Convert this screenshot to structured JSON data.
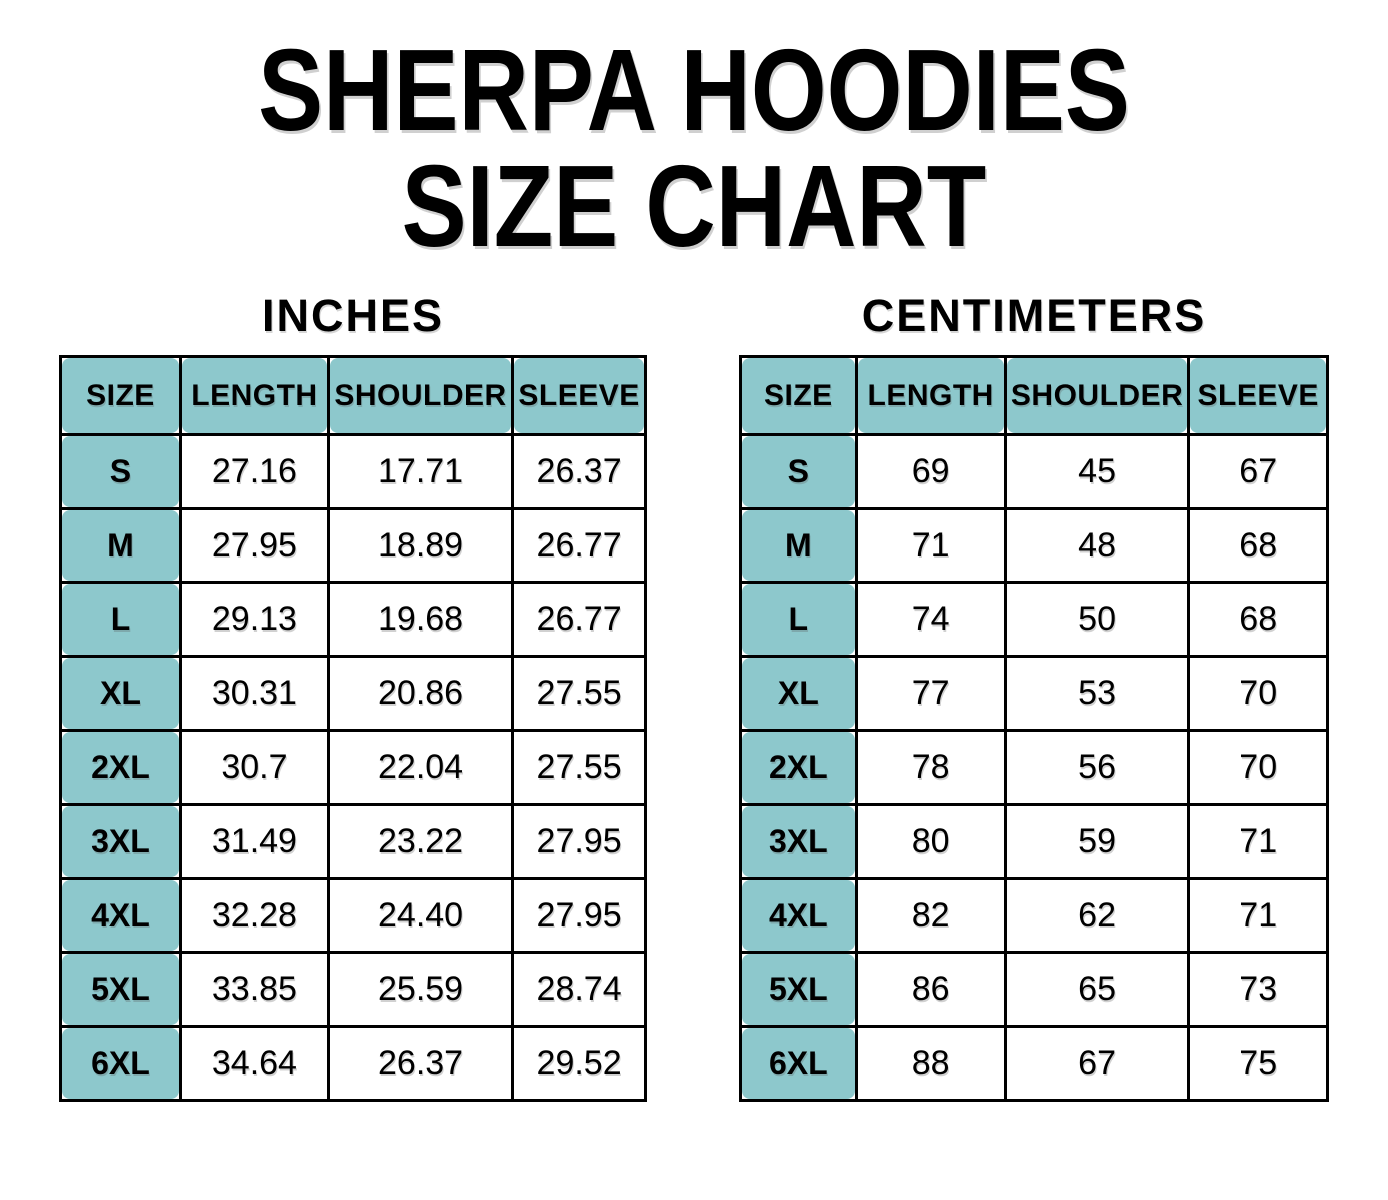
{
  "title": {
    "line1": "SHERPA HOODIES",
    "line2": "SIZE CHART"
  },
  "colors": {
    "header_fill": "#8dc8cc",
    "border": "#000000",
    "text": "#000000",
    "background": "#ffffff"
  },
  "chart_data": [
    {
      "type": "table",
      "title": "INCHES",
      "columns": [
        "SIZE",
        "LENGTH",
        "SHOULDER",
        "SLEEVE"
      ],
      "rows": [
        [
          "S",
          "27.16",
          "17.71",
          "26.37"
        ],
        [
          "M",
          "27.95",
          "18.89",
          "26.77"
        ],
        [
          "L",
          "29.13",
          "19.68",
          "26.77"
        ],
        [
          "XL",
          "30.31",
          "20.86",
          "27.55"
        ],
        [
          "2XL",
          "30.7",
          "22.04",
          "27.55"
        ],
        [
          "3XL",
          "31.49",
          "23.22",
          "27.95"
        ],
        [
          "4XL",
          "32.28",
          "24.40",
          "27.95"
        ],
        [
          "5XL",
          "33.85",
          "25.59",
          "28.74"
        ],
        [
          "6XL",
          "34.64",
          "26.37",
          "29.52"
        ]
      ]
    },
    {
      "type": "table",
      "title": "CENTIMETERS",
      "columns": [
        "SIZE",
        "LENGTH",
        "SHOULDER",
        "SLEEVE"
      ],
      "rows": [
        [
          "S",
          "69",
          "45",
          "67"
        ],
        [
          "M",
          "71",
          "48",
          "68"
        ],
        [
          "L",
          "74",
          "50",
          "68"
        ],
        [
          "XL",
          "77",
          "53",
          "70"
        ],
        [
          "2XL",
          "78",
          "56",
          "70"
        ],
        [
          "3XL",
          "80",
          "59",
          "71"
        ],
        [
          "4XL",
          "82",
          "62",
          "71"
        ],
        [
          "5XL",
          "86",
          "65",
          "73"
        ],
        [
          "6XL",
          "88",
          "67",
          "75"
        ]
      ]
    }
  ]
}
